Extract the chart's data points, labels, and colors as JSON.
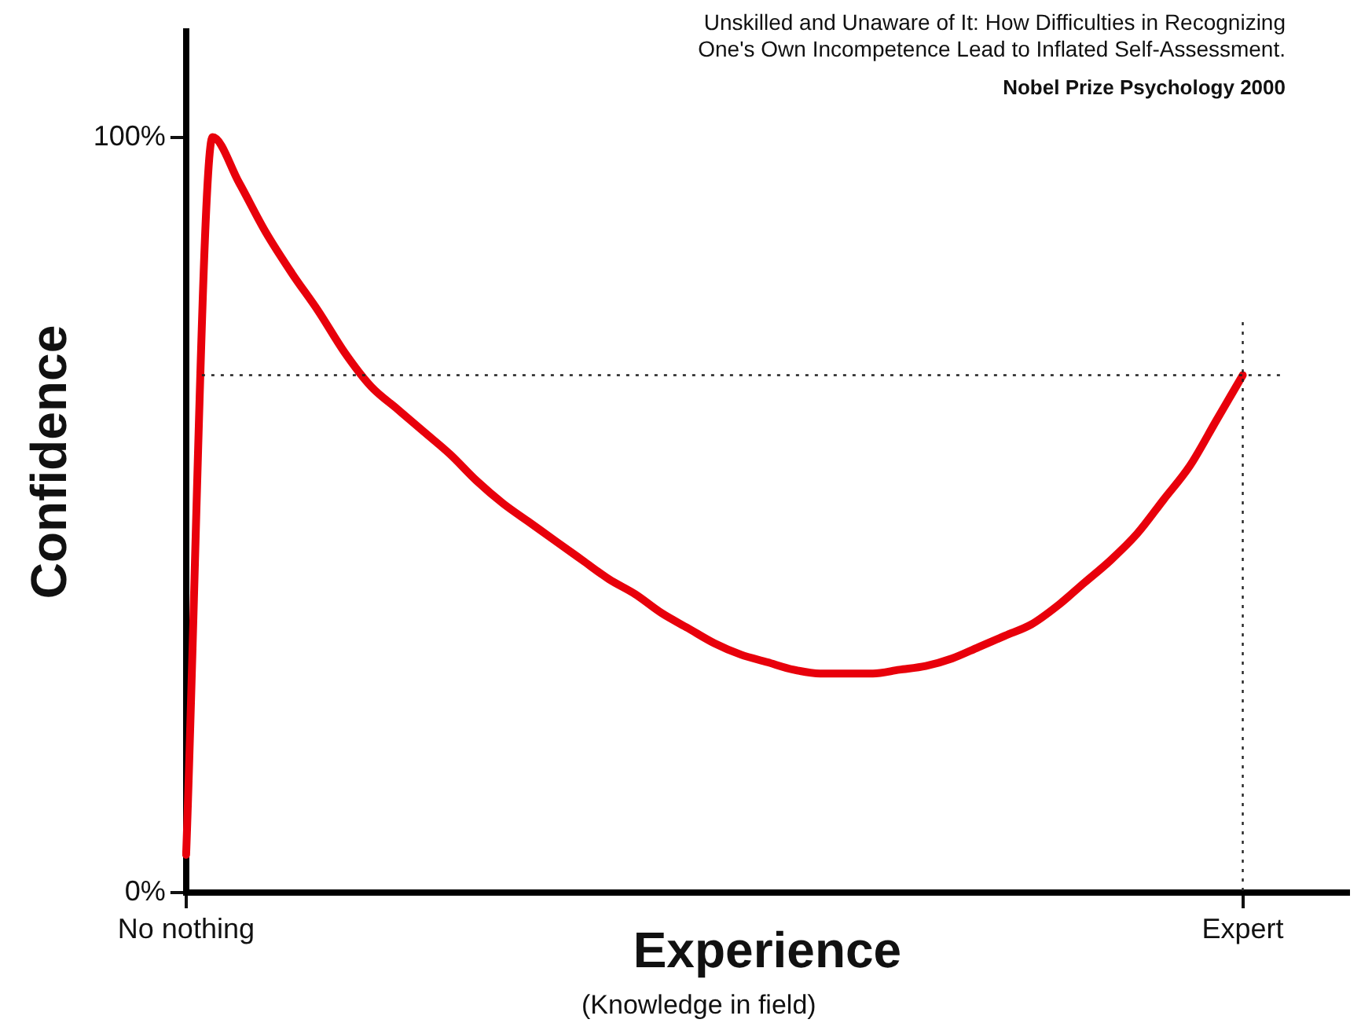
{
  "chart_data": {
    "type": "line",
    "title": "Unskilled and Unaware of It: How Difficulties in Recognizing\nOne's Own Incompetence Lead to Inflated Self-Assessment.",
    "xlabel": "Experience",
    "ylabel": "Confidence",
    "annotations": [
      "Nobel Prize Psychology  2000",
      "(Knowledge in field)"
    ],
    "categories": [
      "No nothing",
      null,
      null,
      null,
      null,
      null,
      null,
      null,
      null,
      null,
      null,
      null,
      null,
      null,
      null,
      null,
      null,
      null,
      null,
      null,
      null,
      null,
      null,
      null,
      null,
      null,
      null,
      null,
      null,
      null,
      null,
      null,
      null,
      null,
      null,
      null,
      null,
      null,
      null,
      null,
      "Expert",
      null,
      null,
      null,
      null
    ],
    "series": [
      {
        "color": "#e8000b",
        "values": [
          5,
          100,
          94,
          87.5,
          82,
          77,
          71.5,
          67,
          64,
          61,
          58,
          54.5,
          51.5,
          49,
          46.5,
          44,
          41.5,
          39.5,
          37,
          35,
          33,
          31.5,
          30.5,
          29.5,
          29,
          29,
          29,
          29.5,
          30,
          31,
          32.5,
          34,
          35.5,
          38,
          41,
          44,
          47.5,
          52,
          56.5,
          62.5,
          68.5,
          null,
          null,
          null,
          null
        ]
      }
    ],
    "ylim": [
      0,
      114
    ],
    "yticks": [
      {
        "value": 0,
        "label": "0%"
      },
      {
        "value": 100,
        "label": "100%"
      }
    ],
    "ref_lines": [
      {
        "axis": "y",
        "value": 68.5,
        "line_style": "dotted"
      },
      {
        "axis": "x",
        "value": "Expert",
        "line_style": "dotted"
      }
    ],
    "grid": false,
    "legend": false,
    "marker": "none",
    "line_style": "solid"
  }
}
